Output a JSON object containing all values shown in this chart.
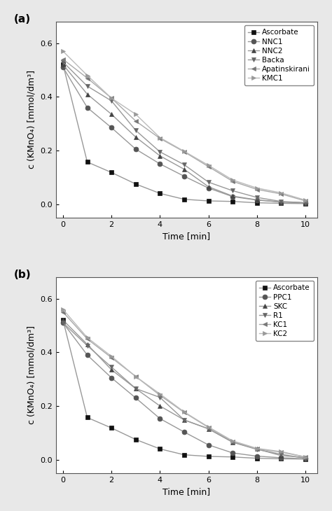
{
  "panel_a": {
    "label": "(a)",
    "time": [
      0,
      1,
      2,
      3,
      4,
      5,
      6,
      7,
      8,
      9,
      10
    ],
    "series": [
      {
        "name": "Ascorbate",
        "marker": "s",
        "color": "#111111",
        "linecolor": "#999999",
        "values": [
          0.52,
          0.157,
          0.118,
          0.075,
          0.04,
          0.018,
          0.012,
          0.01,
          0.005,
          0.003,
          0.002
        ]
      },
      {
        "name": "NNC1",
        "marker": "o",
        "color": "#555555",
        "linecolor": "#999999",
        "values": [
          0.51,
          0.36,
          0.285,
          0.205,
          0.15,
          0.104,
          0.06,
          0.028,
          0.015,
          0.008,
          0.005
        ]
      },
      {
        "name": "NNC2",
        "marker": "^",
        "color": "#444444",
        "linecolor": "#999999",
        "values": [
          0.52,
          0.41,
          0.335,
          0.25,
          0.18,
          0.13,
          0.065,
          0.03,
          0.016,
          0.008,
          0.005
        ]
      },
      {
        "name": "Backa",
        "marker": "v",
        "color": "#666666",
        "linecolor": "#999999",
        "values": [
          0.53,
          0.44,
          0.385,
          0.275,
          0.195,
          0.147,
          0.082,
          0.05,
          0.025,
          0.01,
          0.005
        ]
      },
      {
        "name": "Apatinskirani",
        "marker": "<",
        "color": "#777777",
        "linecolor": "#aaaaaa",
        "values": [
          0.54,
          0.47,
          0.395,
          0.31,
          0.245,
          0.195,
          0.14,
          0.085,
          0.055,
          0.038,
          0.012
        ]
      },
      {
        "name": "KMC1",
        "marker": ">",
        "color": "#999999",
        "linecolor": "#bbbbbb",
        "values": [
          0.57,
          0.48,
          0.395,
          0.335,
          0.248,
          0.197,
          0.145,
          0.09,
          0.06,
          0.042,
          0.015
        ]
      }
    ],
    "ylabel": "c (KMnO₄) [mmol/dm³]",
    "xlabel": "Time [min]",
    "ylim": [
      -0.05,
      0.68
    ],
    "xlim": [
      -0.3,
      10.5
    ],
    "yticks": [
      0.0,
      0.2,
      0.4,
      0.6
    ]
  },
  "panel_b": {
    "label": "(b)",
    "time": [
      0,
      1,
      2,
      3,
      4,
      5,
      6,
      7,
      8,
      9,
      10
    ],
    "series": [
      {
        "name": "Ascorbate",
        "marker": "s",
        "color": "#111111",
        "linecolor": "#999999",
        "values": [
          0.52,
          0.157,
          0.118,
          0.075,
          0.04,
          0.018,
          0.012,
          0.01,
          0.005,
          0.003,
          0.002
        ]
      },
      {
        "name": "PPC1",
        "marker": "o",
        "color": "#555555",
        "linecolor": "#999999",
        "values": [
          0.51,
          0.39,
          0.305,
          0.23,
          0.153,
          0.103,
          0.055,
          0.025,
          0.013,
          0.007,
          0.003
        ]
      },
      {
        "name": "SKC",
        "marker": "^",
        "color": "#444444",
        "linecolor": "#999999",
        "values": [
          0.52,
          0.43,
          0.335,
          0.265,
          0.2,
          0.148,
          0.115,
          0.065,
          0.04,
          0.015,
          0.008
        ]
      },
      {
        "name": "R1",
        "marker": "v",
        "color": "#666666",
        "linecolor": "#999999",
        "values": [
          0.51,
          0.425,
          0.345,
          0.265,
          0.232,
          0.148,
          0.115,
          0.065,
          0.038,
          0.02,
          0.005
        ]
      },
      {
        "name": "KC1",
        "marker": "<",
        "color": "#777777",
        "linecolor": "#aaaaaa",
        "values": [
          0.55,
          0.45,
          0.38,
          0.31,
          0.24,
          0.176,
          0.12,
          0.068,
          0.04,
          0.028,
          0.01
        ]
      },
      {
        "name": "KC2",
        "marker": ">",
        "color": "#999999",
        "linecolor": "#bbbbbb",
        "values": [
          0.56,
          0.455,
          0.385,
          0.31,
          0.245,
          0.178,
          0.122,
          0.07,
          0.042,
          0.03,
          0.01
        ]
      }
    ],
    "ylabel": "c (KMnO₄) [mmol/dm³]",
    "xlabel": "Time [min]",
    "ylim": [
      -0.05,
      0.68
    ],
    "xlim": [
      -0.3,
      10.5
    ],
    "yticks": [
      0.0,
      0.2,
      0.4,
      0.6
    ]
  },
  "figure_bg": "#e8e8e8",
  "axes_bg": "#ffffff",
  "linewidth": 1.0,
  "markersize": 5,
  "fontsize_label": 9,
  "fontsize_legend": 7.5,
  "fontsize_tick": 8,
  "fontsize_panel_label": 11
}
